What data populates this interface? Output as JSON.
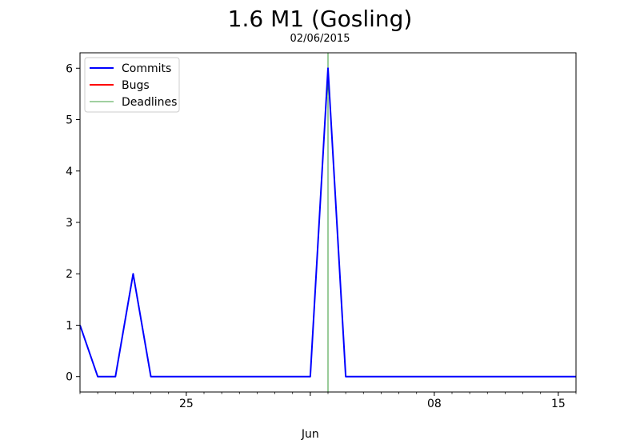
{
  "chart_data": {
    "type": "line",
    "title": "1.6 M1 (Gosling)",
    "subtitle": "02/06/2015",
    "xlabel": "",
    "ylabel": "",
    "x_axis": {
      "type": "date",
      "range": [
        "2015-05-19",
        "2015-06-16"
      ],
      "major_ticks": [
        {
          "date": "2015-05-25",
          "label": "25"
        },
        {
          "date": "2015-06-08",
          "label": "08"
        },
        {
          "date": "2015-06-15",
          "label": "15"
        }
      ],
      "secondary_ticks": [
        {
          "date": "2015-06-01",
          "label": "Jun"
        }
      ],
      "minor_tick_interval_days": 1
    },
    "y_axis": {
      "range": [
        -0.3,
        6.3
      ],
      "ticks": [
        0,
        1,
        2,
        3,
        4,
        5,
        6
      ]
    },
    "grid": false,
    "legend_position": "top-left",
    "series": [
      {
        "name": "Commits",
        "color": "#0000ff",
        "points": [
          {
            "x": "2015-05-19",
            "y": 1
          },
          {
            "x": "2015-05-20",
            "y": 0
          },
          {
            "x": "2015-05-21",
            "y": 0
          },
          {
            "x": "2015-05-22",
            "y": 2
          },
          {
            "x": "2015-05-23",
            "y": 0
          },
          {
            "x": "2015-05-24",
            "y": 0
          },
          {
            "x": "2015-05-25",
            "y": 0
          },
          {
            "x": "2015-05-26",
            "y": 0
          },
          {
            "x": "2015-05-27",
            "y": 0
          },
          {
            "x": "2015-05-28",
            "y": 0
          },
          {
            "x": "2015-05-29",
            "y": 0
          },
          {
            "x": "2015-05-30",
            "y": 0
          },
          {
            "x": "2015-05-31",
            "y": 0
          },
          {
            "x": "2015-06-01",
            "y": 0
          },
          {
            "x": "2015-06-02",
            "y": 6
          },
          {
            "x": "2015-06-03",
            "y": 0
          },
          {
            "x": "2015-06-04",
            "y": 0
          },
          {
            "x": "2015-06-05",
            "y": 0
          },
          {
            "x": "2015-06-06",
            "y": 0
          },
          {
            "x": "2015-06-07",
            "y": 0
          },
          {
            "x": "2015-06-08",
            "y": 0
          },
          {
            "x": "2015-06-09",
            "y": 0
          },
          {
            "x": "2015-06-10",
            "y": 0
          },
          {
            "x": "2015-06-11",
            "y": 0
          },
          {
            "x": "2015-06-12",
            "y": 0
          },
          {
            "x": "2015-06-13",
            "y": 0
          },
          {
            "x": "2015-06-14",
            "y": 0
          },
          {
            "x": "2015-06-15",
            "y": 0
          },
          {
            "x": "2015-06-16",
            "y": 0
          }
        ]
      },
      {
        "name": "Bugs",
        "color": "#ff0000",
        "points": []
      }
    ],
    "deadlines": {
      "name": "Deadlines",
      "color": "#008000",
      "dates": [
        "2015-06-02"
      ]
    }
  }
}
